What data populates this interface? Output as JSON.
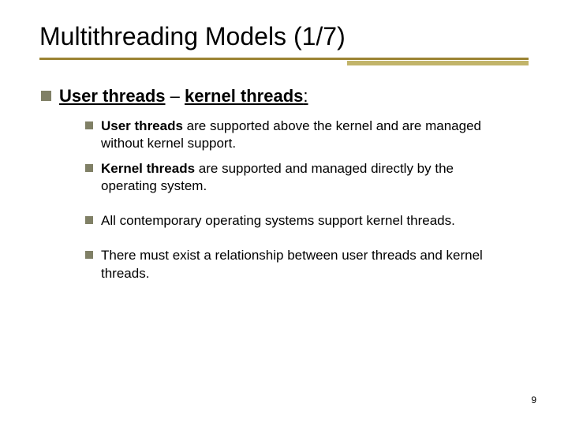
{
  "title": "Multithreading Models (1/7)",
  "colors": {
    "rule_main": "#9b8333",
    "rule_accent": "#c2b46a",
    "bullet": "#808066",
    "text": "#000000",
    "background": "#ffffff"
  },
  "top": {
    "prefix_bold_underline": "User threads",
    "mid": " – ",
    "suffix_bold_underline": "kernel threads",
    "colon": ":"
  },
  "items": {
    "a": {
      "bold1": "User threads",
      "rest": " are supported above the kernel and are managed without kernel support."
    },
    "b": {
      "bold1": "Kernel threads",
      "rest": " are supported and managed directly by the operating system."
    },
    "c": {
      "text": "All contemporary operating systems support kernel threads."
    },
    "d": {
      "text": "There must exist a relationship between user threads and kernel threads."
    }
  },
  "page": "9"
}
